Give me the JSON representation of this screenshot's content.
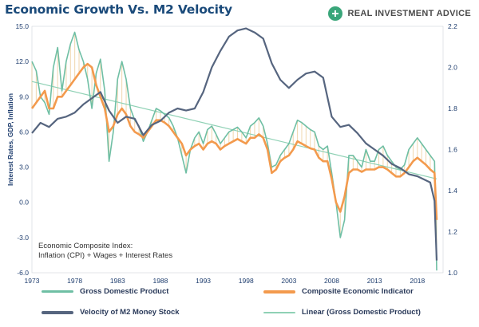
{
  "header": {
    "title": "Economic Growth Vs. M2 Velocity",
    "brand": "REAL INVESTMENT ADVICE"
  },
  "annotation": {
    "line1": "Economic Composite Index:",
    "line2": "Inflation (CPI) + Wages + Interest Rates"
  },
  "colors": {
    "gdp": "#6fbfa4",
    "gdp_fill": "#e4b56a",
    "composite": "#f39a4d",
    "velocity": "#56657f",
    "linear": "#8fd1b5",
    "axis_text": "#1e3d6e",
    "title": "#1a4a7a"
  },
  "chart_data": {
    "type": "line",
    "title": "Economic Growth Vs. M2 Velocity",
    "ylabel": "Interest Rates, GDP, Inflation",
    "xlim": [
      1973,
      2021
    ],
    "ylim": [
      -6,
      15
    ],
    "y2lim": [
      1.0,
      2.2
    ],
    "grid": false,
    "legend_position": "bottom",
    "x_ticks": [
      "1973",
      "1978",
      "1983",
      "1988",
      "1993",
      "1998",
      "2003",
      "2008",
      "2013",
      "2018"
    ],
    "y_ticks": [
      "-6.0",
      "-3.0",
      "0.0",
      "3.0",
      "6.0",
      "9.0",
      "12.0",
      "15.0"
    ],
    "y2_ticks": [
      "1.0",
      "1.2",
      "1.4",
      "1.6",
      "1.8",
      "2.0",
      "2.2"
    ],
    "series": [
      {
        "name": "Gross Domestic Product",
        "axis": "left",
        "x": [
          1973,
          1973.5,
          1974,
          1974.5,
          1975,
          1975.5,
          1976,
          1976.5,
          1977,
          1977.5,
          1978,
          1978.5,
          1979,
          1979.5,
          1980,
          1980.5,
          1981,
          1981.5,
          1982,
          1982.5,
          1983,
          1983.5,
          1984,
          1984.5,
          1985,
          1985.5,
          1986,
          1986.5,
          1987,
          1987.5,
          1988,
          1988.5,
          1989,
          1989.5,
          1990,
          1990.5,
          1991,
          1991.5,
          1992,
          1992.5,
          1993,
          1993.5,
          1994,
          1994.5,
          1995,
          1995.5,
          1996,
          1996.5,
          1997,
          1997.5,
          1998,
          1998.5,
          1999,
          1999.5,
          2000,
          2000.5,
          2001,
          2001.5,
          2002,
          2002.5,
          2003,
          2003.5,
          2004,
          2004.5,
          2005,
          2005.5,
          2006,
          2006.5,
          2007,
          2007.5,
          2008,
          2008.5,
          2009,
          2009.5,
          2010,
          2010.5,
          2011,
          2011.5,
          2012,
          2012.5,
          2013,
          2013.5,
          2014,
          2014.5,
          2015,
          2015.5,
          2016,
          2016.5,
          2017,
          2017.5,
          2018,
          2018.5,
          2019,
          2019.5,
          2020,
          2020.25
        ],
        "values": [
          12.0,
          11.2,
          9.0,
          8.5,
          7.5,
          11.5,
          13.2,
          9.5,
          12.0,
          13.5,
          14.5,
          13.0,
          12.0,
          10.5,
          8.0,
          11.0,
          12.2,
          9.5,
          3.5,
          6.0,
          10.5,
          12.0,
          10.5,
          8.0,
          7.0,
          6.5,
          5.2,
          6.0,
          7.0,
          8.0,
          7.8,
          7.5,
          7.2,
          6.5,
          5.5,
          4.0,
          2.5,
          4.5,
          5.5,
          6.0,
          5.0,
          6.2,
          6.5,
          5.8,
          5.0,
          5.5,
          6.0,
          6.2,
          6.4,
          6.0,
          5.5,
          6.5,
          6.8,
          7.2,
          6.5,
          5.0,
          3.0,
          3.2,
          4.0,
          4.5,
          5.0,
          6.0,
          7.0,
          6.8,
          6.5,
          6.2,
          6.0,
          4.8,
          4.5,
          4.8,
          2.5,
          0.0,
          -3.0,
          -1.5,
          4.0,
          4.0,
          3.5,
          3.0,
          4.5,
          3.5,
          3.5,
          4.5,
          4.8,
          4.0,
          3.5,
          3.0,
          2.8,
          3.2,
          4.5,
          5.0,
          5.5,
          5.0,
          4.5,
          4.0,
          3.5,
          -5.8
        ]
      },
      {
        "name": "Composite Economic Indicator",
        "axis": "left",
        "x": [
          1973,
          1973.5,
          1974,
          1974.5,
          1975,
          1975.5,
          1976,
          1976.5,
          1977,
          1977.5,
          1978,
          1978.5,
          1979,
          1979.5,
          1980,
          1980.5,
          1981,
          1981.5,
          1982,
          1982.5,
          1983,
          1983.5,
          1984,
          1984.5,
          1985,
          1985.5,
          1986,
          1986.5,
          1987,
          1987.5,
          1988,
          1988.5,
          1989,
          1989.5,
          1990,
          1990.5,
          1991,
          1991.5,
          1992,
          1992.5,
          1993,
          1993.5,
          1994,
          1994.5,
          1995,
          1995.5,
          1996,
          1996.5,
          1997,
          1997.5,
          1998,
          1998.5,
          1999,
          1999.5,
          2000,
          2000.5,
          2001,
          2001.5,
          2002,
          2002.5,
          2003,
          2003.5,
          2004,
          2004.5,
          2005,
          2005.5,
          2006,
          2006.5,
          2007,
          2007.5,
          2008,
          2008.5,
          2009,
          2009.5,
          2010,
          2010.5,
          2011,
          2011.5,
          2012,
          2012.5,
          2013,
          2013.5,
          2014,
          2014.5,
          2015,
          2015.5,
          2016,
          2016.5,
          2017,
          2017.5,
          2018,
          2018.5,
          2019,
          2019.5,
          2020,
          2020.25
        ],
        "values": [
          8.0,
          8.5,
          9.0,
          9.5,
          8.0,
          8.0,
          9.0,
          9.0,
          9.5,
          10.0,
          10.5,
          11.0,
          11.5,
          11.8,
          11.5,
          10.0,
          9.0,
          8.0,
          6.0,
          6.5,
          7.5,
          8.0,
          7.5,
          6.5,
          6.0,
          5.8,
          5.5,
          6.0,
          6.5,
          7.0,
          7.0,
          6.8,
          6.5,
          6.0,
          5.5,
          5.0,
          4.0,
          4.5,
          4.8,
          5.0,
          4.5,
          5.0,
          5.2,
          5.0,
          4.5,
          4.8,
          5.0,
          5.2,
          5.4,
          5.2,
          5.0,
          5.5,
          5.5,
          5.8,
          5.5,
          4.5,
          2.5,
          2.8,
          3.5,
          3.8,
          4.0,
          4.5,
          5.2,
          5.0,
          4.8,
          4.6,
          4.5,
          3.8,
          3.5,
          3.5,
          2.0,
          0.0,
          -0.8,
          0.5,
          2.5,
          2.8,
          2.8,
          2.6,
          2.8,
          2.8,
          2.8,
          3.0,
          3.0,
          2.8,
          2.5,
          2.2,
          2.2,
          2.5,
          3.0,
          3.5,
          3.8,
          3.5,
          3.2,
          2.8,
          2.5,
          -1.5
        ]
      },
      {
        "name": "Velocity of M2 Money Stock",
        "axis": "right",
        "x": [
          1973,
          1974,
          1975,
          1976,
          1977,
          1978,
          1979,
          1980,
          1981,
          1982,
          1983,
          1984,
          1985,
          1986,
          1987,
          1988,
          1989,
          1990,
          1991,
          1992,
          1993,
          1994,
          1995,
          1996,
          1997,
          1998,
          1999,
          2000,
          2001,
          2002,
          2003,
          2004,
          2005,
          2006,
          2007,
          2008,
          2009,
          2010,
          2011,
          2012,
          2013,
          2014,
          2015,
          2016,
          2017,
          2018,
          2019,
          2019.5,
          2020,
          2020.25
        ],
        "values": [
          1.68,
          1.73,
          1.71,
          1.75,
          1.76,
          1.78,
          1.82,
          1.85,
          1.88,
          1.79,
          1.73,
          1.76,
          1.75,
          1.67,
          1.72,
          1.74,
          1.78,
          1.8,
          1.79,
          1.8,
          1.88,
          2.0,
          2.08,
          2.15,
          2.18,
          2.19,
          2.17,
          2.14,
          2.02,
          1.94,
          1.9,
          1.94,
          1.97,
          1.98,
          1.95,
          1.76,
          1.71,
          1.72,
          1.68,
          1.63,
          1.6,
          1.57,
          1.53,
          1.51,
          1.48,
          1.47,
          1.45,
          1.44,
          1.35,
          1.06
        ]
      },
      {
        "name": "Linear (Gross Domestic Product)",
        "axis": "left",
        "x": [
          1973,
          2020.25
        ],
        "values": [
          10.3,
          2.0
        ]
      }
    ]
  }
}
